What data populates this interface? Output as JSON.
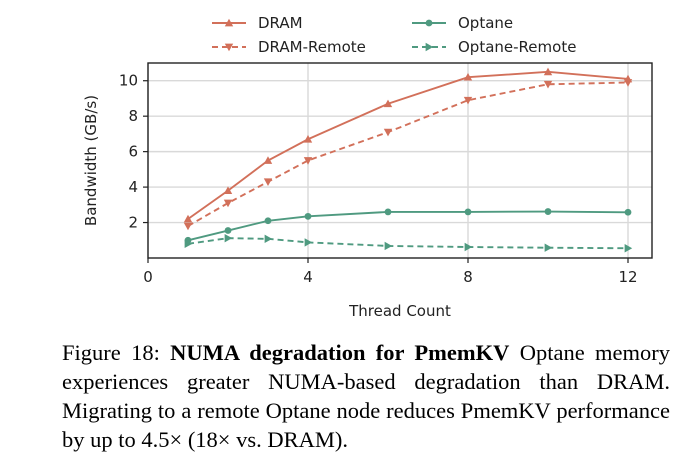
{
  "chart_data": {
    "type": "line",
    "xlabel": "Thread Count",
    "ylabel": "Bandwidth (GB/s)",
    "xlim": [
      0,
      12.6
    ],
    "ylim": [
      0,
      11
    ],
    "xticks": [
      0,
      4,
      8,
      12
    ],
    "yticks": [
      2,
      4,
      6,
      8,
      10
    ],
    "grid": true,
    "legend": "top",
    "series": [
      {
        "name": "DRAM",
        "color": "#d2705a",
        "dash": "solid",
        "marker": "triangle-up",
        "x": [
          1,
          2,
          3,
          4,
          6,
          8,
          10,
          12
        ],
        "y": [
          2.2,
          3.8,
          5.5,
          6.7,
          8.7,
          10.2,
          10.5,
          10.1
        ]
      },
      {
        "name": "DRAM-Remote",
        "color": "#d2705a",
        "dash": "dashed",
        "marker": "triangle-down",
        "x": [
          1,
          2,
          3,
          4,
          6,
          8,
          10,
          12
        ],
        "y": [
          1.8,
          3.1,
          4.3,
          5.5,
          7.1,
          8.9,
          9.8,
          9.9
        ]
      },
      {
        "name": "Optane",
        "color": "#4f9a80",
        "dash": "solid",
        "marker": "circle",
        "x": [
          1,
          2,
          3,
          4,
          6,
          8,
          10,
          12
        ],
        "y": [
          1.0,
          1.55,
          2.1,
          2.35,
          2.6,
          2.6,
          2.62,
          2.58
        ]
      },
      {
        "name": "Optane-Remote",
        "color": "#4f9a80",
        "dash": "dashed",
        "marker": "triangle-right",
        "x": [
          1,
          2,
          3,
          4,
          6,
          8,
          10,
          12
        ],
        "y": [
          0.8,
          1.12,
          1.08,
          0.88,
          0.68,
          0.62,
          0.58,
          0.55
        ]
      }
    ]
  },
  "caption": {
    "prefix": "Figure 18: ",
    "title": "NUMA degradation for PmemKV",
    "body": " Optane memory experiences greater NUMA-based degradation than DRAM. Migrating to a remote Optane node reduces PmemKV performance by up to 4.5× (18× vs. DRAM)."
  }
}
